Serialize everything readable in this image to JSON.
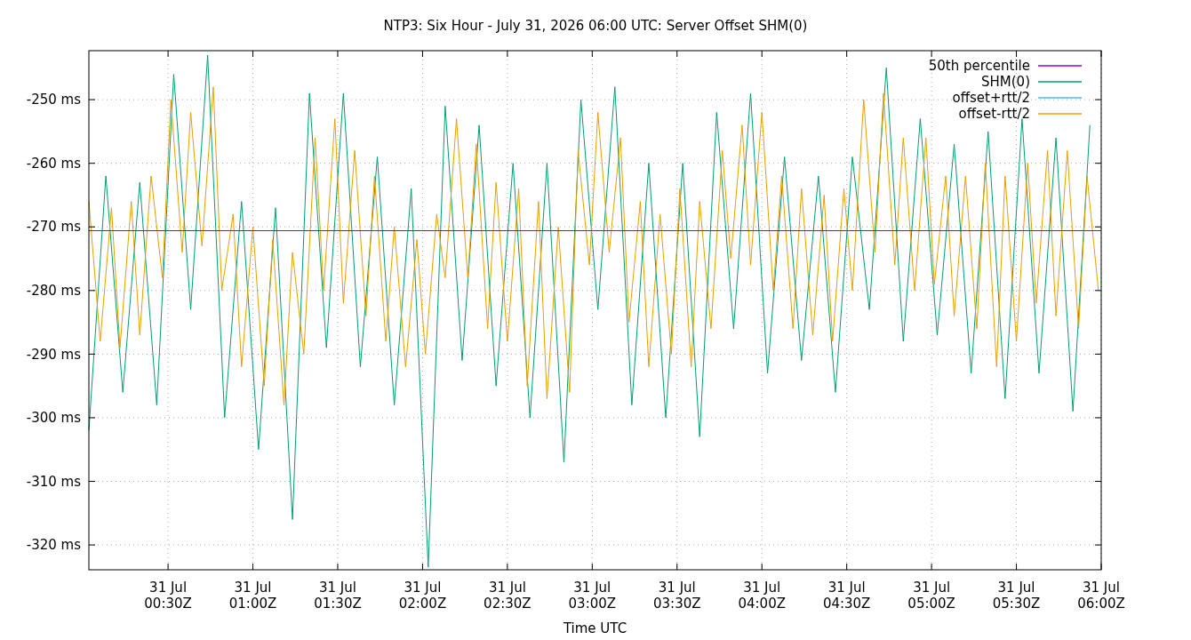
{
  "chart_data": {
    "type": "line",
    "title": "NTP3: Six Hour - July 31, 2026 06:00 UTC: Server Offset SHM(0)",
    "xlabel": "Time UTC",
    "xlim": [
      "2026-07-31T00:02",
      "2026-07-31T06:00"
    ],
    "xticks": [
      {
        "value": "2026-07-31T00:30",
        "label": "31 Jul\n00:30Z"
      },
      {
        "value": "2026-07-31T01:00",
        "label": "31 Jul\n01:00Z"
      },
      {
        "value": "2026-07-31T01:30",
        "label": "31 Jul\n01:30Z"
      },
      {
        "value": "2026-07-31T02:00",
        "label": "31 Jul\n02:00Z"
      },
      {
        "value": "2026-07-31T02:30",
        "label": "31 Jul\n02:30Z"
      },
      {
        "value": "2026-07-31T03:00",
        "label": "31 Jul\n03:00Z"
      },
      {
        "value": "2026-07-31T03:30",
        "label": "31 Jul\n03:30Z"
      },
      {
        "value": "2026-07-31T04:00",
        "label": "31 Jul\n04:00Z"
      },
      {
        "value": "2026-07-31T04:30",
        "label": "31 Jul\n04:30Z"
      },
      {
        "value": "2026-07-31T05:00",
        "label": "31 Jul\n05:00Z"
      },
      {
        "value": "2026-07-31T05:30",
        "label": "31 Jul\n05:30Z"
      },
      {
        "value": "2026-07-31T06:00",
        "label": "31 Jul\n06:00Z"
      }
    ],
    "ylim": [
      -323.9,
      -242.3
    ],
    "yticks": [
      {
        "value": -320,
        "label": "-320 ms"
      },
      {
        "value": -310,
        "label": "-310 ms"
      },
      {
        "value": -300,
        "label": "-300 ms"
      },
      {
        "value": -290,
        "label": "-290 ms"
      },
      {
        "value": -280,
        "label": "-280 ms"
      },
      {
        "value": -270,
        "label": "-270 ms"
      },
      {
        "value": -260,
        "label": "-260 ms"
      },
      {
        "value": -250,
        "label": "-250 ms"
      }
    ],
    "grid": true,
    "legend": "top right",
    "line_style": "solid",
    "series": [
      {
        "name": "50th percentile",
        "color": "#9400d3",
        "x": [
          "2026-07-31T00:02",
          "2026-07-31T06:00"
        ],
        "values": [
          -270.6,
          -270.6
        ]
      },
      {
        "name": "SHM(0)",
        "color": "#009e73",
        "x": [
          "2026-07-31T00:02",
          "2026-07-31T00:08",
          "2026-07-31T00:14",
          "2026-07-31T00:20",
          "2026-07-31T00:26",
          "2026-07-31T00:32",
          "2026-07-31T00:38",
          "2026-07-31T00:44",
          "2026-07-31T00:50",
          "2026-07-31T00:56",
          "2026-07-31T01:02",
          "2026-07-31T01:08",
          "2026-07-31T01:14",
          "2026-07-31T01:20",
          "2026-07-31T01:26",
          "2026-07-31T01:32",
          "2026-07-31T01:38",
          "2026-07-31T01:44",
          "2026-07-31T01:50",
          "2026-07-31T01:56",
          "2026-07-31T02:02",
          "2026-07-31T02:08",
          "2026-07-31T02:14",
          "2026-07-31T02:20",
          "2026-07-31T02:26",
          "2026-07-31T02:32",
          "2026-07-31T02:38",
          "2026-07-31T02:44",
          "2026-07-31T02:50",
          "2026-07-31T02:56",
          "2026-07-31T03:02",
          "2026-07-31T03:08",
          "2026-07-31T03:14",
          "2026-07-31T03:20",
          "2026-07-31T03:26",
          "2026-07-31T03:32",
          "2026-07-31T03:38",
          "2026-07-31T03:44",
          "2026-07-31T03:50",
          "2026-07-31T03:56",
          "2026-07-31T04:02",
          "2026-07-31T04:08",
          "2026-07-31T04:14",
          "2026-07-31T04:20",
          "2026-07-31T04:26",
          "2026-07-31T04:32",
          "2026-07-31T04:38",
          "2026-07-31T04:44",
          "2026-07-31T04:50",
          "2026-07-31T04:56",
          "2026-07-31T05:02",
          "2026-07-31T05:08",
          "2026-07-31T05:14",
          "2026-07-31T05:20",
          "2026-07-31T05:26",
          "2026-07-31T05:32",
          "2026-07-31T05:38",
          "2026-07-31T05:44",
          "2026-07-31T05:50",
          "2026-07-31T05:56"
        ],
        "values": [
          -302,
          -262,
          -296,
          -263,
          -298,
          -246,
          -283,
          -243,
          -300,
          -266,
          -305,
          -267,
          -316,
          -249,
          -289,
          -249,
          -292,
          -259,
          -298,
          -264,
          -323.5,
          -251,
          -291,
          -254,
          -295,
          -260,
          -300,
          -260,
          -307,
          -250,
          -283,
          -248,
          -298,
          -260,
          -300,
          -260,
          -303,
          -252,
          -286,
          -249,
          -293,
          -259,
          -291,
          -262,
          -296,
          -259,
          -283,
          -245,
          -288,
          -253,
          -287,
          -257,
          -293,
          -255,
          -297,
          -253,
          -293,
          -256,
          -299,
          -254
        ]
      },
      {
        "name": "offset+rtt/2",
        "color": "#56b4e9"
      },
      {
        "name": "offset-rtt/2",
        "color": "#e69f00",
        "x": [
          "2026-07-31T00:02",
          "2026-07-31T00:06",
          "2026-07-31T00:10",
          "2026-07-31T00:13",
          "2026-07-31T00:17",
          "2026-07-31T00:20",
          "2026-07-31T00:24",
          "2026-07-31T00:28",
          "2026-07-31T00:31",
          "2026-07-31T00:35",
          "2026-07-31T00:38",
          "2026-07-31T00:42",
          "2026-07-31T00:46",
          "2026-07-31T00:49",
          "2026-07-31T00:53",
          "2026-07-31T00:56",
          "2026-07-31T01:00",
          "2026-07-31T01:04",
          "2026-07-31T01:07",
          "2026-07-31T01:11",
          "2026-07-31T01:14",
          "2026-07-31T01:18",
          "2026-07-31T01:22",
          "2026-07-31T01:25",
          "2026-07-31T01:29",
          "2026-07-31T01:32",
          "2026-07-31T01:36",
          "2026-07-31T01:40",
          "2026-07-31T01:43",
          "2026-07-31T01:47",
          "2026-07-31T01:50",
          "2026-07-31T01:54",
          "2026-07-31T01:58",
          "2026-07-31T02:01",
          "2026-07-31T02:05",
          "2026-07-31T02:08",
          "2026-07-31T02:12",
          "2026-07-31T02:16",
          "2026-07-31T02:19",
          "2026-07-31T02:23",
          "2026-07-31T02:26",
          "2026-07-31T02:30",
          "2026-07-31T02:34",
          "2026-07-31T02:37",
          "2026-07-31T02:41",
          "2026-07-31T02:44",
          "2026-07-31T02:48",
          "2026-07-31T02:52",
          "2026-07-31T02:55",
          "2026-07-31T02:59",
          "2026-07-31T03:02",
          "2026-07-31T03:06",
          "2026-07-31T03:10",
          "2026-07-31T03:13",
          "2026-07-31T03:17",
          "2026-07-31T03:20",
          "2026-07-31T03:24",
          "2026-07-31T03:28",
          "2026-07-31T03:31",
          "2026-07-31T03:35",
          "2026-07-31T03:38",
          "2026-07-31T03:42",
          "2026-07-31T03:46",
          "2026-07-31T03:49",
          "2026-07-31T03:53",
          "2026-07-31T03:56",
          "2026-07-31T04:00",
          "2026-07-31T04:04",
          "2026-07-31T04:07",
          "2026-07-31T04:11",
          "2026-07-31T04:14",
          "2026-07-31T04:18",
          "2026-07-31T04:22",
          "2026-07-31T04:25",
          "2026-07-31T04:29",
          "2026-07-31T04:32",
          "2026-07-31T04:36",
          "2026-07-31T04:40",
          "2026-07-31T04:43",
          "2026-07-31T04:47",
          "2026-07-31T04:50",
          "2026-07-31T04:54",
          "2026-07-31T04:58",
          "2026-07-31T05:01",
          "2026-07-31T05:05",
          "2026-07-31T05:08",
          "2026-07-31T05:12",
          "2026-07-31T05:16",
          "2026-07-31T05:19",
          "2026-07-31T05:23",
          "2026-07-31T05:26",
          "2026-07-31T05:30",
          "2026-07-31T05:34",
          "2026-07-31T05:37",
          "2026-07-31T05:41",
          "2026-07-31T05:44",
          "2026-07-31T05:48",
          "2026-07-31T05:52",
          "2026-07-31T05:55",
          "2026-07-31T05:59"
        ],
        "values": [
          -266,
          -288,
          -267,
          -289,
          -266,
          -287,
          -262,
          -278,
          -250,
          -274,
          -252,
          -273,
          -248,
          -280,
          -268,
          -292,
          -270,
          -295,
          -272,
          -298,
          -274,
          -290,
          -256,
          -280,
          -253,
          -282,
          -258,
          -284,
          -262,
          -288,
          -270,
          -292,
          -272,
          -290,
          -268,
          -278,
          -253,
          -278,
          -257,
          -286,
          -263,
          -288,
          -264,
          -295,
          -266,
          -297,
          -270,
          -296,
          -258,
          -276,
          -252,
          -274,
          -256,
          -285,
          -266,
          -292,
          -268,
          -290,
          -264,
          -292,
          -266,
          -286,
          -258,
          -275,
          -254,
          -276,
          -252,
          -280,
          -262,
          -286,
          -264,
          -287,
          -265,
          -288,
          -264,
          -280,
          -250,
          -274,
          -249,
          -276,
          -256,
          -280,
          -256,
          -279,
          -262,
          -284,
          -262,
          -286,
          -260,
          -292,
          -262,
          -288,
          -260,
          -282,
          -258,
          -284,
          -258,
          -286,
          -262,
          -280
        ]
      }
    ]
  }
}
